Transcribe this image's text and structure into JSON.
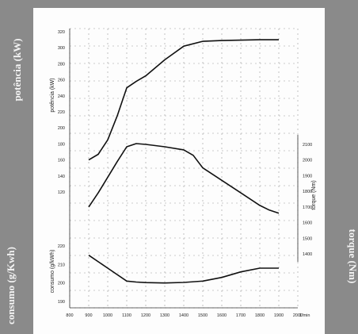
{
  "side_labels": {
    "power": "potência (kW)",
    "consumption": "consumo (g/Kwh)",
    "torque": "torque (Nm)"
  },
  "chart_data": {
    "type": "line",
    "x": [
      900,
      1000,
      1100,
      1200,
      1300,
      1400,
      1500,
      1600,
      1700,
      1800,
      1900
    ],
    "x_ticks": [
      "800",
      "900",
      "1000",
      "1100",
      "1200",
      "1300",
      "1400",
      "1500",
      "1600",
      "1700",
      "1800",
      "1900",
      "2000"
    ],
    "x_unit": "1/min",
    "xlim": [
      800,
      2000
    ],
    "grid": true,
    "axes": {
      "power": {
        "label": "potência (kW)",
        "ticks": [
          "120",
          "140",
          "160",
          "180",
          "200",
          "220",
          "240",
          "260",
          "280",
          "300",
          "320"
        ],
        "ylim": [
          120,
          320
        ]
      },
      "torque": {
        "label": "torque (Nm)",
        "ticks": [
          "1400",
          "1500",
          "1600",
          "1700",
          "1800",
          "1900",
          "2000",
          "2100"
        ],
        "ylim": [
          1400,
          2100
        ]
      },
      "consumption": {
        "label": "consumo (g/kWh)",
        "ticks": [
          "190",
          "200",
          "210",
          "220"
        ],
        "ylim": [
          190,
          220
        ]
      }
    },
    "series": [
      {
        "axis": "power",
        "x": [
          900,
          950,
          1000,
          1050,
          1100,
          1150,
          1200,
          1300,
          1400,
          1500,
          1600,
          1700,
          1800,
          1850,
          1900
        ],
        "values": [
          160,
          167,
          185,
          215,
          250,
          258,
          265,
          285,
          302,
          308,
          309,
          309.5,
          310,
          310,
          310
        ]
      },
      {
        "axis": "torque",
        "x": [
          900,
          950,
          1000,
          1050,
          1100,
          1150,
          1200,
          1300,
          1400,
          1450,
          1500,
          1600,
          1700,
          1800,
          1850,
          1900
        ],
        "values": [
          1700,
          1790,
          1890,
          1990,
          2085,
          2105,
          2100,
          2085,
          2065,
          2030,
          1950,
          1870,
          1790,
          1710,
          1680,
          1660
        ]
      },
      {
        "axis": "consumption",
        "x": [
          900,
          1000,
          1100,
          1150,
          1200,
          1300,
          1400,
          1500,
          1600,
          1700,
          1800,
          1900
        ],
        "values": [
          215,
          208,
          201,
          200.5,
          200.2,
          200,
          200.3,
          201,
          203,
          206,
          208,
          208
        ]
      }
    ]
  }
}
